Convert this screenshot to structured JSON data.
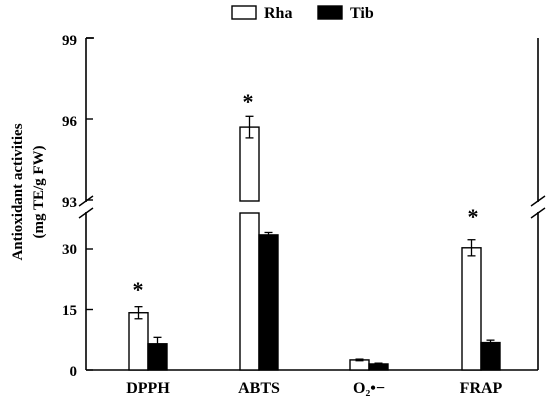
{
  "chart_data": {
    "type": "bar",
    "categories": [
      "DPPH",
      "ABTS",
      "O₂•−",
      "FRAP"
    ],
    "series": [
      {
        "name": "Rha",
        "values": [
          14.2,
          95.7,
          2.5,
          30.3
        ],
        "errors": [
          1.5,
          0.4,
          0.2,
          2.0
        ],
        "fill": "#ffffff"
      },
      {
        "name": "Tib",
        "values": [
          6.5,
          33.5,
          1.5,
          6.8
        ],
        "errors": [
          1.6,
          0.6,
          0.2,
          0.6
        ],
        "fill": "#000000"
      }
    ],
    "significance": [
      "*",
      "*",
      "",
      "*"
    ],
    "ylabel_line1": "Antioxidant  activities",
    "ylabel_line2": "(mg TE/g  FW)",
    "axis_break": {
      "lower_range": [
        0,
        40
      ],
      "upper_range": [
        93,
        99
      ]
    },
    "lower_ticks": [
      0,
      15,
      30
    ],
    "upper_ticks": [
      93,
      96,
      99
    ],
    "legend_position": "top-center",
    "grid": false
  }
}
